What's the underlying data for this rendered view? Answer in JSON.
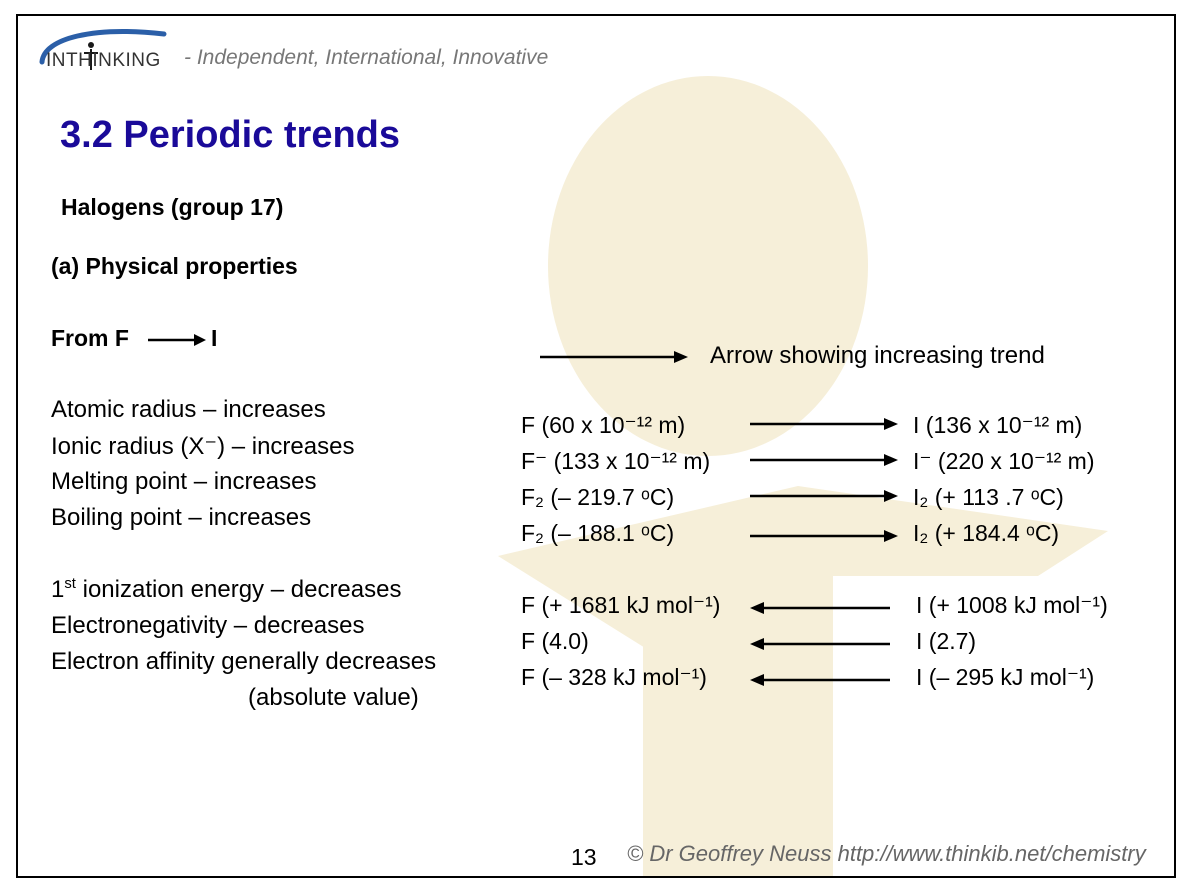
{
  "brand": {
    "logo_text": "INTHINKING",
    "tagline": "- Independent, International, Innovative"
  },
  "title": "3.2 Periodic trends",
  "subtitle": "Halogens (group 17)",
  "section": "(a) Physical properties",
  "from_label": {
    "start": "From F",
    "end": "I"
  },
  "legend_text": "Arrow showing increasing trend",
  "properties": [
    "Atomic radius – increases",
    "Ionic radius (X⁻) – increases",
    "Melting point – increases",
    "Boiling point – increases",
    "1st ionization energy – decreases",
    "Electronegativity – decreases",
    "Electron affinity generally decreases",
    "(absolute value)"
  ],
  "values": {
    "atomic_radius": {
      "left": "F (60 x 10⁻¹² m)",
      "right": "I (136 x 10⁻¹² m)"
    },
    "ionic_radius": {
      "left": "F⁻ (133 x 10⁻¹² m)",
      "right": "I⁻ (220 x 10⁻¹² m)"
    },
    "melting_point": {
      "left": "F₂ (– 219.7 ᵒC)",
      "right": "I₂ (+ 113 .7 ᵒC)"
    },
    "boiling_point": {
      "left": "F₂ (– 188.1 ᵒC)",
      "right": "I₂ (+ 184.4 ᵒC)"
    },
    "ionization_energy": {
      "left": "F (+ 1681 kJ mol⁻¹)",
      "right": "I (+ 1008 kJ mol⁻¹)"
    },
    "electronegativity": {
      "left": "F (4.0)",
      "right": "I (2.7)"
    },
    "electron_affinity": {
      "left": "F (– 328 kJ mol⁻¹)",
      "right": "I (– 295 kJ mol⁻¹)"
    }
  },
  "page_number": "13",
  "footer": "© Dr Geoffrey Neuss http://www.thinkib.net/chemistry"
}
